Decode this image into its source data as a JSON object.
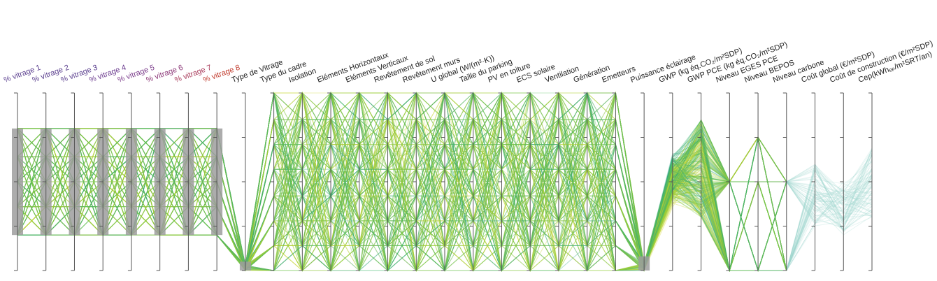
{
  "chart_data": {
    "type": "parallel-coordinates",
    "axes": [
      {
        "label": "% vitrage 1",
        "color": "#5a3e8e",
        "brush": [
          0.2,
          0.8
        ]
      },
      {
        "label": "% vitrage 2",
        "color": "#5a3e8e",
        "brush": [
          0.2,
          0.8
        ]
      },
      {
        "label": "% vitrage 3",
        "color": "#5a3e8e",
        "brush": [
          0.2,
          0.8
        ]
      },
      {
        "label": "% vitrage 4",
        "color": "#6a3a8e",
        "brush": [
          0.2,
          0.8
        ]
      },
      {
        "label": "% vitrage 5",
        "color": "#7a3a8a",
        "brush": [
          0.2,
          0.8
        ]
      },
      {
        "label": "% vitrage 6",
        "color": "#8c3878",
        "brush": [
          0.2,
          0.8
        ]
      },
      {
        "label": "% vitrage 7",
        "color": "#a83a5a",
        "brush": [
          0.2,
          0.8
        ]
      },
      {
        "label": "% vitrage 8",
        "color": "#c0392b",
        "brush": [
          0.2,
          0.8
        ]
      },
      {
        "label": "Type de Vitrage",
        "color": "#222222",
        "brush": [
          0.0,
          0.05
        ]
      },
      {
        "label": "Type du cadre",
        "color": "#222222"
      },
      {
        "label": "Isolation",
        "color": "#222222"
      },
      {
        "label": "Eléments Horizontaux",
        "color": "#222222"
      },
      {
        "label": "Eléments Verticaux",
        "color": "#222222"
      },
      {
        "label": "Revêtement de sol",
        "color": "#222222"
      },
      {
        "label": "Revêtement murs",
        "color": "#222222"
      },
      {
        "label": "U global (W/(m²·K))",
        "color": "#222222"
      },
      {
        "label": "Taille du parking",
        "color": "#222222"
      },
      {
        "label": "PV en toiture",
        "color": "#222222"
      },
      {
        "label": "ECS solaire",
        "color": "#222222"
      },
      {
        "label": "Ventilation",
        "color": "#222222"
      },
      {
        "label": "Génération",
        "color": "#222222"
      },
      {
        "label": "Emetteurs",
        "color": "#222222"
      },
      {
        "label": "Puissance éclairage",
        "color": "#222222",
        "brush": [
          0.0,
          0.08
        ]
      },
      {
        "label": "GWP (kg éq.CO₂/m²SDP)",
        "color": "#222222"
      },
      {
        "label": "GWP PCE (kg éq.CO₂/m²SDP)",
        "color": "#222222"
      },
      {
        "label": "Niveau EGES PCE",
        "color": "#222222"
      },
      {
        "label": "Niveau BEPOS",
        "color": "#222222"
      },
      {
        "label": "Niveau carbone",
        "color": "#222222"
      },
      {
        "label": "Coût global (€/m²SDP)",
        "color": "#222222"
      },
      {
        "label": "Coût de construction (€/m²SDP)",
        "color": "#222222"
      },
      {
        "label": "Cep(kWhₑₚ/m²SRT/an)",
        "color": "#222222"
      }
    ],
    "color_scale": [
      "#2a9d8f",
      "#3fb868",
      "#7fc93a",
      "#b5d334",
      "#d9d62b"
    ],
    "line_count": 260
  }
}
